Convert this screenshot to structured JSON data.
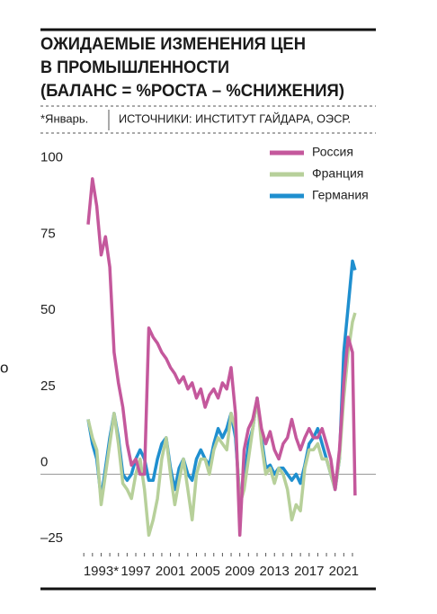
{
  "stray_text": "о",
  "chart_data": {
    "type": "line",
    "title": [
      "ОЖИДАЕМЫЕ ИЗМЕНЕНИЯ ЦЕН",
      "В ПРОМЫШЛЕННОСТИ",
      "(БАЛАНС = %РОСТА – %СНИЖЕНИЯ)"
    ],
    "footnote": "*Январь.",
    "source": "ИСТОЧНИКИ: ИНСТИТУТ ГАЙДАРА, ОЭСР.",
    "x": [
      1991.5,
      1992,
      1992.5,
      1993,
      1993.5,
      1994,
      1994.5,
      1995,
      1995.5,
      1996,
      1996.5,
      1997,
      1997.5,
      1998,
      1998.5,
      1999,
      1999.5,
      2000,
      2000.5,
      2001,
      2001.5,
      2002,
      2002.5,
      2003,
      2003.5,
      2004,
      2004.5,
      2005,
      2005.5,
      2006,
      2006.5,
      2007,
      2007.5,
      2008,
      2008.5,
      2009,
      2009.5,
      2010,
      2010.5,
      2011,
      2011.5,
      2012,
      2012.5,
      2013,
      2013.5,
      2014,
      2014.5,
      2015,
      2015.5,
      2016,
      2016.5,
      2017,
      2017.5,
      2018,
      2018.5,
      2019,
      2019.5,
      2020,
      2020.5,
      2021,
      2021.5,
      2022,
      2022.3
    ],
    "series": [
      {
        "name": "Россия",
        "color": "#c4589c",
        "values": [
          82,
          97,
          88,
          72,
          78,
          68,
          40,
          30,
          22,
          10,
          3,
          5,
          0,
          0,
          48,
          45,
          43,
          40,
          38,
          35,
          33,
          30,
          32,
          28,
          30,
          25,
          28,
          22,
          26,
          28,
          25,
          30,
          28,
          35,
          20,
          -20,
          8,
          15,
          18,
          25,
          15,
          10,
          14,
          8,
          5,
          10,
          12,
          18,
          12,
          8,
          12,
          15,
          12,
          12,
          15,
          10,
          5,
          -5,
          8,
          30,
          45,
          40,
          -7
        ]
      },
      {
        "name": "Франция",
        "color": "#b7d09a",
        "values": [
          18,
          12,
          8,
          -10,
          0,
          10,
          20,
          10,
          -3,
          -5,
          -8,
          0,
          5,
          -5,
          -20,
          -15,
          -8,
          5,
          12,
          0,
          -10,
          -2,
          5,
          -5,
          -15,
          0,
          5,
          5,
          0,
          8,
          12,
          10,
          8,
          20,
          15,
          -10,
          -5,
          5,
          15,
          25,
          10,
          0,
          2,
          -3,
          2,
          0,
          -5,
          -15,
          -10,
          -12,
          2,
          8,
          8,
          10,
          5,
          5,
          0,
          -5,
          5,
          25,
          40,
          50,
          53
        ]
      },
      {
        "name": "Германия",
        "color": "#1f8fcf",
        "values": [
          18,
          10,
          5,
          -8,
          2,
          12,
          20,
          12,
          0,
          -2,
          0,
          5,
          8,
          5,
          -2,
          -2,
          5,
          10,
          12,
          2,
          -5,
          2,
          5,
          0,
          -2,
          5,
          8,
          5,
          3,
          10,
          15,
          12,
          15,
          20,
          12,
          -8,
          -2,
          10,
          15,
          25,
          12,
          2,
          3,
          0,
          2,
          2,
          0,
          -2,
          0,
          -3,
          3,
          10,
          12,
          15,
          10,
          5,
          0,
          -5,
          5,
          40,
          55,
          70,
          67
        ]
      }
    ],
    "xlim": [
      1986,
      2024.7
    ],
    "xticks": [
      {
        "value": 1993,
        "label": "1993*"
      },
      1997,
      2001,
      2005,
      2009,
      2013,
      2017,
      2021
    ],
    "xminorticks": [
      1991,
      1992,
      1993,
      1994,
      1995,
      1996,
      1997,
      1998,
      1999,
      2000,
      2001,
      2002,
      2003,
      2004,
      2005,
      2006,
      2007,
      2008,
      2009,
      2010,
      2011,
      2012,
      2013,
      2014,
      2015,
      2016,
      2017,
      2018,
      2019,
      2020,
      2021,
      2022
    ],
    "ylim": [
      -27,
      107
    ],
    "yticks": [
      {
        "value": -25,
        "label": "–25"
      },
      0,
      25,
      50,
      75,
      100
    ],
    "legend": "upper right"
  }
}
